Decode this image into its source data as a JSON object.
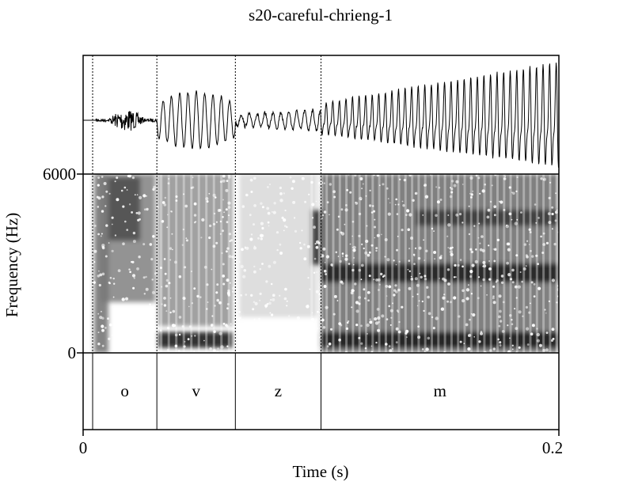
{
  "chart_data": {
    "type": "line",
    "title": "s20-careful-chrieng-1",
    "xlabel": "Time (s)",
    "ylabel": "Frequency (Hz)",
    "xlim": [
      0,
      0.2
    ],
    "ylim": [
      0,
      6000
    ],
    "x_ticks": [
      "0",
      "0.2"
    ],
    "y_ticks": [
      "0",
      "6000"
    ],
    "panels": [
      "waveform",
      "spectrogram",
      "segment-tier"
    ],
    "segments": [
      {
        "label": "o",
        "start": 0.004,
        "end": 0.031
      },
      {
        "label": "v",
        "start": 0.031,
        "end": 0.064
      },
      {
        "label": "z",
        "start": 0.064,
        "end": 0.1
      },
      {
        "label": "m",
        "start": 0.1,
        "end": 0.2
      }
    ],
    "grid": false
  }
}
